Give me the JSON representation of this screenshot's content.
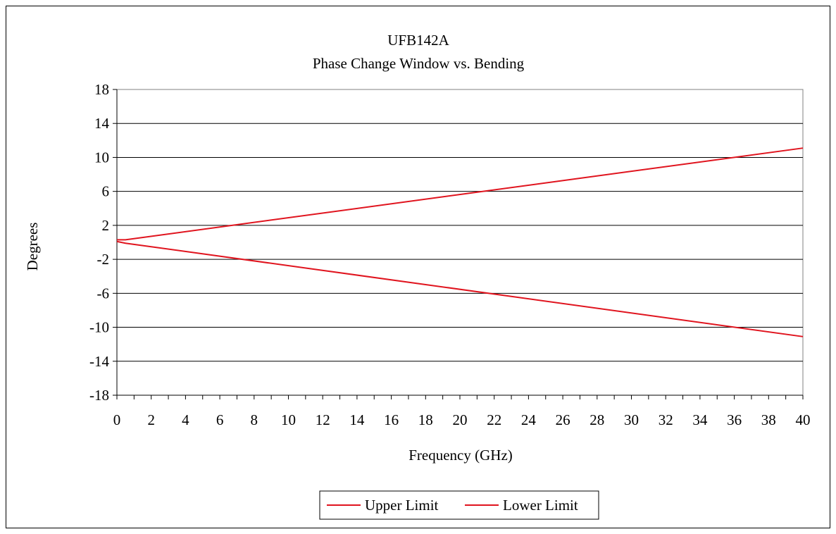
{
  "chart_data": {
    "type": "line",
    "title": "UFB142A",
    "subtitle": "Phase Change Window vs. Bending",
    "xlabel": "Frequency (GHz)",
    "ylabel": "Degrees",
    "xlim": [
      0,
      40
    ],
    "ylim": [
      -18,
      18
    ],
    "x_ticks": [
      "0",
      "2",
      "4",
      "6",
      "8",
      "10",
      "12",
      "14",
      "16",
      "18",
      "20",
      "22",
      "24",
      "26",
      "28",
      "30",
      "32",
      "34",
      "36",
      "38",
      "40"
    ],
    "y_ticks": [
      "18",
      "14",
      "10",
      "6",
      "2",
      "-2",
      "-6",
      "-10",
      "-14",
      "-18"
    ],
    "grid": "horizontal",
    "legend_position": "bottom",
    "series": [
      {
        "name": "Upper Limit",
        "color": "#e0141e",
        "x": [
          0,
          0.5,
          40
        ],
        "y": [
          0.3,
          0.3,
          11.1
        ]
      },
      {
        "name": "Lower Limit",
        "color": "#e0141e",
        "x": [
          0,
          0.5,
          40
        ],
        "y": [
          0.1,
          -0.1,
          -11.1
        ]
      }
    ]
  }
}
